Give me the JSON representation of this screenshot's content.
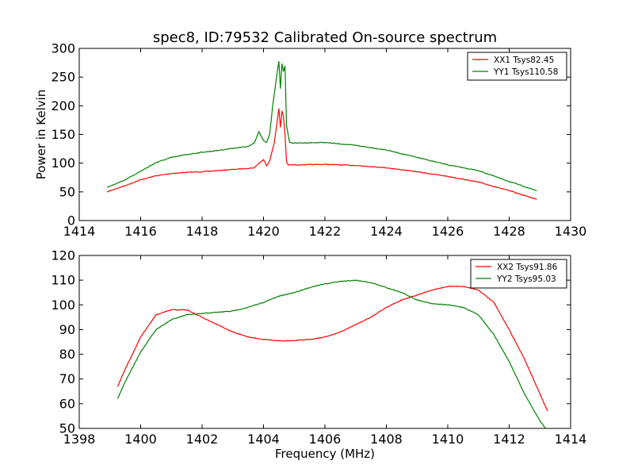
{
  "chart_data": [
    {
      "type": "line",
      "title": "spec8, ID:79532 Calibrated On-source spectrum",
      "ylabel": "Power in Kelvin",
      "xlabel": "",
      "xlim": [
        1414,
        1430
      ],
      "ylim": [
        0,
        300
      ],
      "xticks": [
        "1414",
        "1416",
        "1418",
        "1420",
        "1422",
        "1424",
        "1426",
        "1428",
        "1430"
      ],
      "yticks": [
        "0",
        "50",
        "100",
        "150",
        "200",
        "250",
        "300"
      ],
      "legend_position": "top-right",
      "grid": false,
      "series": [
        {
          "name": "XX1 Tsys82.45",
          "color": "#ff0000",
          "x": [
            1414.9,
            1415.5,
            1416,
            1416.5,
            1417,
            1417.5,
            1418,
            1418.5,
            1419,
            1419.5,
            1419.7,
            1419.85,
            1420,
            1420.1,
            1420.2,
            1420.35,
            1420.5,
            1420.55,
            1420.6,
            1420.65,
            1420.7,
            1420.75,
            1420.8,
            1420.9,
            1421,
            1422,
            1423,
            1424,
            1425,
            1426,
            1427,
            1428,
            1428.9
          ],
          "y": [
            50,
            61,
            71,
            78,
            82,
            84,
            85,
            87,
            89,
            91,
            92,
            100,
            106,
            96,
            104,
            135,
            195,
            162,
            191,
            182,
            150,
            102,
            97,
            97,
            97,
            98,
            96,
            92,
            85,
            77,
            67,
            52,
            37
          ]
        },
        {
          "name": "YY1 Tsys110.58",
          "color": "#008000",
          "x": [
            1414.9,
            1415.5,
            1416,
            1416.5,
            1417,
            1417.5,
            1418,
            1418.5,
            1419,
            1419.5,
            1419.7,
            1419.85,
            1420,
            1420.1,
            1420.2,
            1420.3,
            1420.4,
            1420.5,
            1420.55,
            1420.6,
            1420.65,
            1420.7,
            1420.75,
            1420.85,
            1421,
            1422,
            1423,
            1424,
            1425,
            1426,
            1427,
            1428,
            1428.9
          ],
          "y": [
            58,
            71,
            86,
            101,
            110,
            115,
            119,
            122,
            126,
            129,
            135,
            155,
            140,
            136,
            150,
            200,
            240,
            278,
            230,
            273,
            260,
            270,
            165,
            136,
            135,
            136,
            131,
            123,
            110,
            97,
            87,
            68,
            52
          ]
        }
      ]
    },
    {
      "type": "line",
      "title": "",
      "ylabel": "",
      "xlabel": "Frequency (MHz)",
      "xlim": [
        1398,
        1414
      ],
      "ylim": [
        50,
        120
      ],
      "xticks": [
        "1398",
        "1400",
        "1402",
        "1404",
        "1406",
        "1408",
        "1410",
        "1412",
        "1414"
      ],
      "yticks": [
        "50",
        "60",
        "70",
        "80",
        "90",
        "100",
        "110",
        "120"
      ],
      "legend_position": "top-right",
      "grid": false,
      "series": [
        {
          "name": "XX2 Tsys91.86",
          "color": "#ff0000",
          "x": [
            1399.25,
            1399.5,
            1400,
            1400.5,
            1401,
            1401.5,
            1402,
            1402.5,
            1403,
            1403.5,
            1404,
            1404.5,
            1405,
            1405.5,
            1406,
            1406.5,
            1407,
            1407.5,
            1408,
            1408.5,
            1409,
            1409.5,
            1410,
            1410.5,
            1411,
            1411.5,
            1412,
            1412.5,
            1413,
            1413.25
          ],
          "y": [
            67,
            74,
            87,
            96,
            98,
            98,
            95,
            92,
            89,
            87,
            86,
            85.5,
            85.5,
            86,
            87,
            89,
            92,
            95,
            99,
            102,
            104,
            106,
            107.5,
            107.5,
            106,
            101,
            90,
            78,
            64,
            57
          ]
        },
        {
          "name": "YY2 Tsys95.03",
          "color": "#008000",
          "x": [
            1399.25,
            1399.5,
            1400,
            1400.5,
            1401,
            1401.5,
            1402,
            1402.5,
            1403,
            1403.5,
            1404,
            1404.5,
            1405,
            1405.5,
            1406,
            1406.5,
            1407,
            1407.5,
            1408,
            1408.5,
            1409,
            1409.5,
            1410,
            1410.5,
            1411,
            1411.5,
            1412,
            1412.5,
            1413,
            1413.25
          ],
          "y": [
            62,
            69,
            81,
            90,
            94,
            96,
            96.5,
            97,
            97.5,
            99,
            101,
            103.5,
            105,
            107,
            108.5,
            109.5,
            110,
            109,
            107,
            105,
            102,
            100.5,
            100,
            99,
            96,
            88,
            77,
            64,
            53,
            49
          ]
        }
      ]
    }
  ]
}
